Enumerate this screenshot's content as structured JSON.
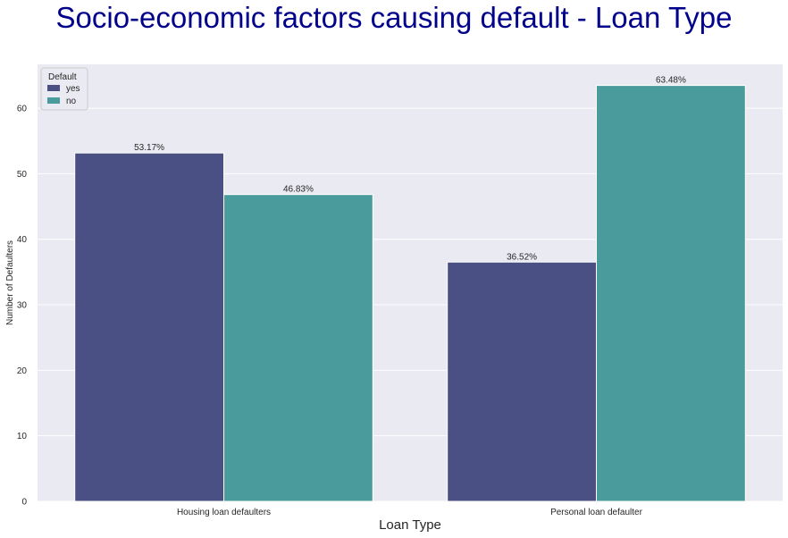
{
  "chart_data": {
    "type": "bar",
    "title": "Socio-economic factors causing default - Loan Type",
    "xlabel": "Loan Type",
    "ylabel": "Number of Defaulters",
    "categories": [
      "Housing loan defaulters",
      "Personal loan defaulter"
    ],
    "series": [
      {
        "name": "yes",
        "values": [
          53.17,
          36.52
        ],
        "labels": [
          "53.17%",
          "36.52%"
        ],
        "color": "#4a5083"
      },
      {
        "name": "no",
        "values": [
          46.83,
          63.48
        ],
        "labels": [
          "46.83%",
          "63.48%"
        ],
        "color": "#4a9c9c"
      }
    ],
    "ylim": [
      0,
      66.7
    ],
    "yticks": [
      0,
      10,
      20,
      30,
      40,
      50,
      60
    ],
    "grid": true,
    "legend": {
      "title": "Default",
      "placement": "top-left"
    },
    "colors": {
      "title": "#00008b",
      "plot_background": "#eaeaf2",
      "grid": "#ffffff",
      "text": "#262626"
    }
  }
}
